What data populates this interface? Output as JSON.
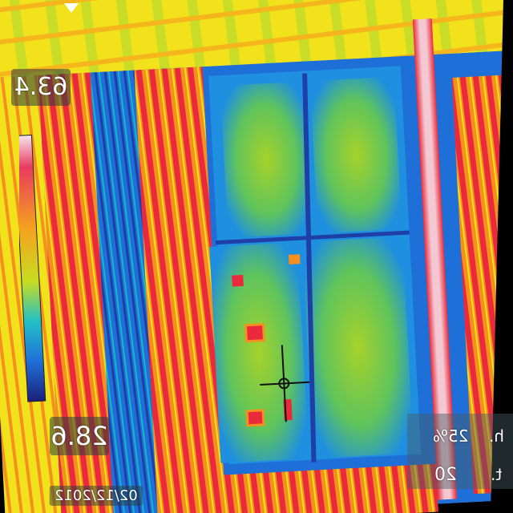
{
  "thermal": {
    "max_temp": "63.4",
    "min_temp": "28.6",
    "humidity": "25%",
    "emissivity": "20",
    "unit_top": "h.",
    "unit_bottom": "t.",
    "date": "02/12/2012"
  },
  "palette": {
    "cold": "#1e3fa6",
    "cool": "#1f8fe0",
    "mid": "#12b8c8",
    "warm": "#a6d22a",
    "yellow": "#f2e21b",
    "orange": "#f58f1e",
    "hot": "#ea2a3c",
    "hottest": "#f3c8d2"
  }
}
